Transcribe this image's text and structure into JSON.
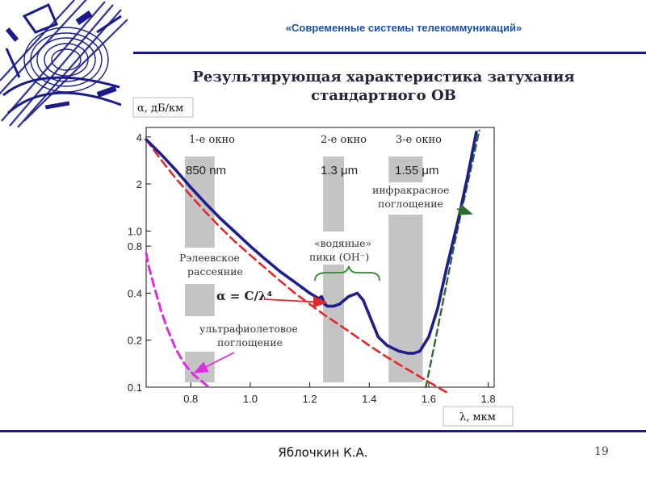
{
  "header": {
    "subtitle": "«Современные системы телекоммуникаций»"
  },
  "slide": {
    "title_line1": "Результирующая характеристика затухания",
    "title_line2": "стандартного ОВ"
  },
  "footer": {
    "author": "Яблочкин К.А.",
    "page_number": "19"
  },
  "colors": {
    "accent": "#1a4fb0",
    "total_curve": "#1e1e8c",
    "rayleigh": "#e02a2a",
    "uv": "#dd2ddd",
    "ir": "#2f6a2f",
    "window_band": "#c4c4c4",
    "water_brace": "#2a8a2a"
  },
  "chart_data": {
    "type": "line",
    "ylabel": "α, дБ/км",
    "xlabel": "λ, мкм",
    "xlim": [
      0.65,
      1.82
    ],
    "ylim": [
      0.1,
      4.6
    ],
    "y_scale": "log",
    "x_ticks": [
      "0.8",
      "1.0",
      "1.2",
      "1.4",
      "1.6",
      "1.8"
    ],
    "x_tick_values": [
      0.8,
      1.0,
      1.2,
      1.4,
      1.6,
      1.8
    ],
    "y_ticks": [
      "4",
      "2",
      "1.0",
      "0.8",
      "0.4",
      "0.2",
      "0.1"
    ],
    "y_tick_values": [
      4,
      2,
      1.0,
      0.8,
      0.4,
      0.2,
      0.1
    ],
    "windows": [
      {
        "label": "1-е окно",
        "wavelength": "850 nm",
        "x_range": [
          0.78,
          0.88
        ]
      },
      {
        "label": "2-е окно",
        "wavelength": "1.3 μm",
        "x_range": [
          1.245,
          1.315
        ]
      },
      {
        "label": "3-е окно",
        "wavelength": "1.55 μm",
        "x_range": [
          1.465,
          1.58
        ]
      }
    ],
    "series": [
      {
        "key": "total",
        "style": "solid",
        "x": [
          0.65,
          0.7,
          0.75,
          0.8,
          0.85,
          0.9,
          0.95,
          1.0,
          1.05,
          1.1,
          1.15,
          1.2,
          1.23,
          1.24,
          1.245,
          1.25,
          1.26,
          1.28,
          1.3,
          1.33,
          1.36,
          1.38,
          1.4,
          1.43,
          1.46,
          1.5,
          1.53,
          1.55,
          1.57,
          1.6,
          1.63,
          1.66,
          1.7,
          1.73,
          1.76
        ],
        "y": [
          3.85,
          3.1,
          2.45,
          1.9,
          1.5,
          1.2,
          0.98,
          0.8,
          0.66,
          0.55,
          0.47,
          0.4,
          0.37,
          0.38,
          0.36,
          0.34,
          0.33,
          0.33,
          0.34,
          0.38,
          0.4,
          0.36,
          0.29,
          0.21,
          0.185,
          0.17,
          0.165,
          0.165,
          0.17,
          0.21,
          0.32,
          0.58,
          1.2,
          2.2,
          4.3
        ]
      },
      {
        "key": "rayleigh",
        "style": "dashed",
        "x": [
          0.65,
          0.7,
          0.75,
          0.8,
          0.85,
          0.9,
          0.95,
          1.0,
          1.05,
          1.1,
          1.15,
          1.2,
          1.25,
          1.3,
          1.35,
          1.4,
          1.45,
          1.5,
          1.55,
          1.6,
          1.65,
          1.66
        ],
        "y": [
          3.85,
          2.86,
          2.17,
          1.68,
          1.32,
          1.05,
          0.85,
          0.7,
          0.58,
          0.48,
          0.4,
          0.34,
          0.29,
          0.25,
          0.215,
          0.185,
          0.16,
          0.14,
          0.123,
          0.108,
          0.095,
          0.093
        ]
      },
      {
        "key": "ultraviolet",
        "style": "dashed",
        "x": [
          0.65,
          0.66,
          0.68,
          0.7,
          0.72,
          0.75,
          0.78,
          0.81,
          0.84,
          0.86
        ],
        "y": [
          0.72,
          0.58,
          0.42,
          0.31,
          0.24,
          0.175,
          0.14,
          0.12,
          0.108,
          0.1
        ]
      },
      {
        "key": "infrared",
        "style": "dashed",
        "x": [
          1.59,
          1.62,
          1.65,
          1.68,
          1.71,
          1.74,
          1.77
        ],
        "y": [
          0.1,
          0.19,
          0.37,
          0.72,
          1.35,
          2.4,
          4.4
        ]
      }
    ],
    "annotations": {
      "rayleigh_label1": "Рэлеевское",
      "rayleigh_label2": "рассеяние",
      "formula": "α = C/λ⁴",
      "water_label1": "«водяные»",
      "water_label2": "пики (OH⁻)",
      "uv_label1": "ультрафиолетовое",
      "uv_label2": "поглощение",
      "ir_label1": "инфракрасное",
      "ir_label2": "поглощение"
    }
  }
}
